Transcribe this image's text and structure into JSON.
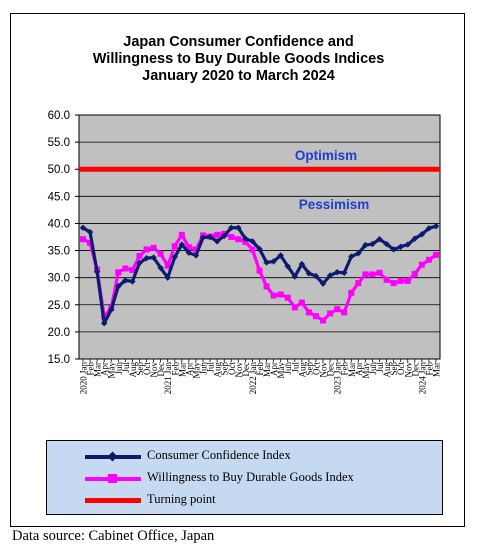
{
  "chart_data": {
    "type": "line",
    "title_lines": [
      "Japan Consumer Confidence and",
      "Willingness  to Buy Durable Goods Indices",
      "January 2020 to March 2024"
    ],
    "ylim": [
      15,
      60
    ],
    "yticks": [
      "60.0",
      "55.0",
      "50.0",
      "45.0",
      "40.0",
      "35.0",
      "30.0",
      "25.0",
      "20.0",
      "15.0"
    ],
    "x": [
      "2020 Jan",
      "Feb",
      "Mar",
      "Apr",
      "May",
      "Jun",
      "Jul",
      "Aug",
      "Sep",
      "Oct",
      "Nov",
      "Dec",
      "2021 Jan",
      "Feb",
      "Mar",
      "Apr",
      "May",
      "Jun",
      "Jul",
      "Aug",
      "Sep",
      "Oct",
      "Nov",
      "Dec",
      "2022 Jan",
      "Feb",
      "Mar",
      "Apr",
      "May",
      "Jun",
      "Jul",
      "Aug",
      "Sep",
      "Oct",
      "Nov",
      "Dec",
      "2023 Jan",
      "Feb",
      "Mar",
      "Apr",
      "May",
      "Jun",
      "Jul",
      "Aug",
      "Sep",
      "Oct",
      "Nov",
      "Dec",
      "2024 Jan",
      "Feb",
      "Mar"
    ],
    "grid": true,
    "plot_background": "#c0c0c0",
    "series": [
      {
        "name": "Consumer Confidence Index",
        "color": "#0d1b6e",
        "values": [
          39.2,
          38.4,
          31.1,
          21.6,
          24.1,
          28.4,
          29.5,
          29.3,
          32.7,
          33.6,
          33.7,
          31.8,
          30.0,
          33.8,
          36.1,
          34.6,
          34.1,
          37.4,
          37.5,
          36.7,
          37.7,
          39.2,
          39.2,
          37.2,
          36.7,
          35.3,
          32.8,
          33.0,
          34.1,
          32.1,
          30.2,
          32.5,
          30.8,
          30.3,
          28.9,
          30.4,
          31.0,
          30.9,
          33.9,
          34.5,
          36.0,
          36.2,
          37.1,
          36.2,
          35.2,
          35.7,
          36.1,
          37.2,
          38.0,
          39.1,
          39.5
        ]
      },
      {
        "name": "Willingness to Buy Durable Goods Index",
        "color": "#ff00ff",
        "values": [
          37.1,
          36.4,
          31.5,
          22.9,
          24.4,
          31.0,
          31.7,
          31.4,
          34.0,
          35.2,
          35.5,
          34.4,
          32.2,
          35.8,
          37.9,
          35.6,
          35.2,
          37.8,
          37.6,
          37.9,
          38.1,
          37.5,
          37.1,
          36.6,
          35.2,
          31.3,
          28.4,
          26.7,
          26.9,
          26.3,
          24.5,
          25.4,
          23.6,
          22.9,
          22.1,
          23.4,
          24.2,
          23.6,
          27.2,
          29.0,
          30.6,
          30.6,
          30.9,
          29.6,
          29.0,
          29.4,
          29.4,
          30.7,
          32.4,
          33.3,
          34.2
        ]
      }
    ],
    "turning_point": {
      "name": "Turning point",
      "value": 50,
      "color": "#ff0000"
    },
    "annotations": {
      "above": "Optimism",
      "below": "Pessimism",
      "color": "#1f3fcf"
    },
    "legend_placement": "bottom"
  },
  "source": "Data source: Cabinet Office, Japan"
}
